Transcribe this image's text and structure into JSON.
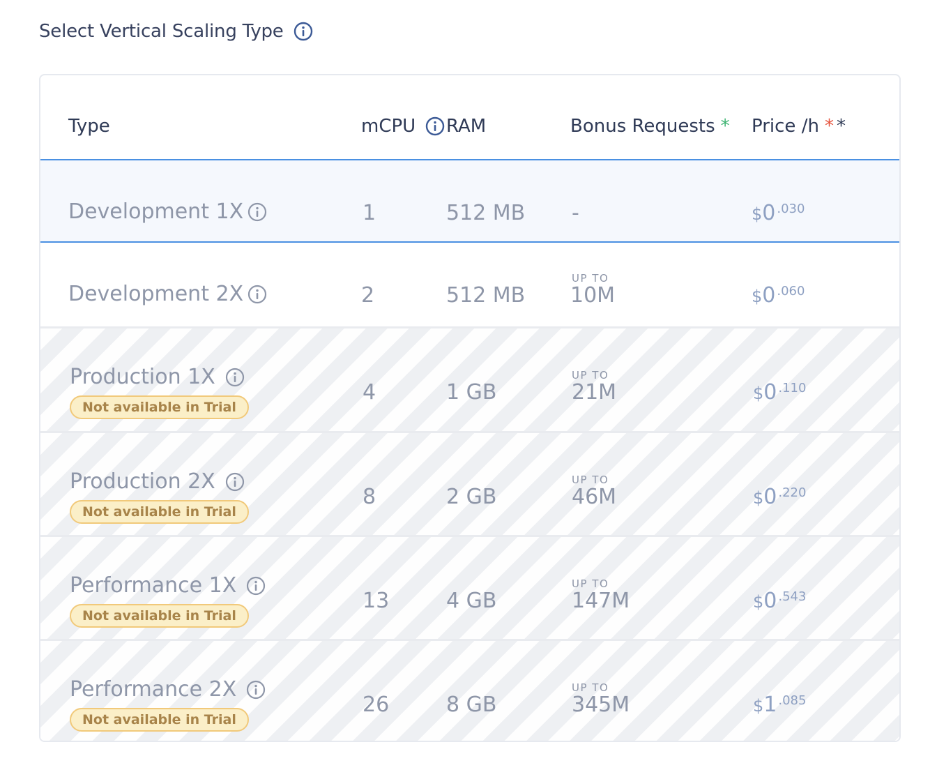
{
  "page": {
    "title": "Select Vertical Scaling Type"
  },
  "table": {
    "headers": {
      "type": "Type",
      "mcpu": "mCPU",
      "ram": "RAM",
      "bonus": "Bonus Requests",
      "bonus_mark": "*",
      "price": "Price /h",
      "price_mark_red": "*",
      "price_mark_dark": "*"
    },
    "upto_label": "UP TO",
    "currency": "$",
    "rows": [
      {
        "name": "Development 1X",
        "mcpu": "1",
        "ram": "512 MB",
        "bonus": "-",
        "price_main": "0",
        "price_cents": ".030",
        "selected": true,
        "badge": ""
      },
      {
        "name": "Development 2X",
        "mcpu": "2",
        "ram": "512 MB",
        "bonus": "10M",
        "price_main": "0",
        "price_cents": ".060",
        "selected": false,
        "badge": ""
      },
      {
        "name": "Production 1X",
        "mcpu": "4",
        "ram": "1 GB",
        "bonus": "21M",
        "price_main": "0",
        "price_cents": ".110",
        "badge": "Not available in Trial"
      },
      {
        "name": "Production 2X",
        "mcpu": "8",
        "ram": "2 GB",
        "bonus": "46M",
        "price_main": "0",
        "price_cents": ".220",
        "badge": "Not available in Trial"
      },
      {
        "name": "Performance 1X",
        "mcpu": "13",
        "ram": "4 GB",
        "bonus": "147M",
        "price_main": "0",
        "price_cents": ".543",
        "badge": "Not available in Trial"
      },
      {
        "name": "Performance 2X",
        "mcpu": "26",
        "ram": "8 GB",
        "bonus": "345M",
        "price_main": "1",
        "price_cents": ".085",
        "badge": "Not available in Trial"
      }
    ]
  },
  "colors": {
    "selected_border": "#4a90e2",
    "badge_bg": "#fbefc8",
    "price": "#8ea0c2"
  },
  "icons": {
    "info": "info-icon"
  }
}
